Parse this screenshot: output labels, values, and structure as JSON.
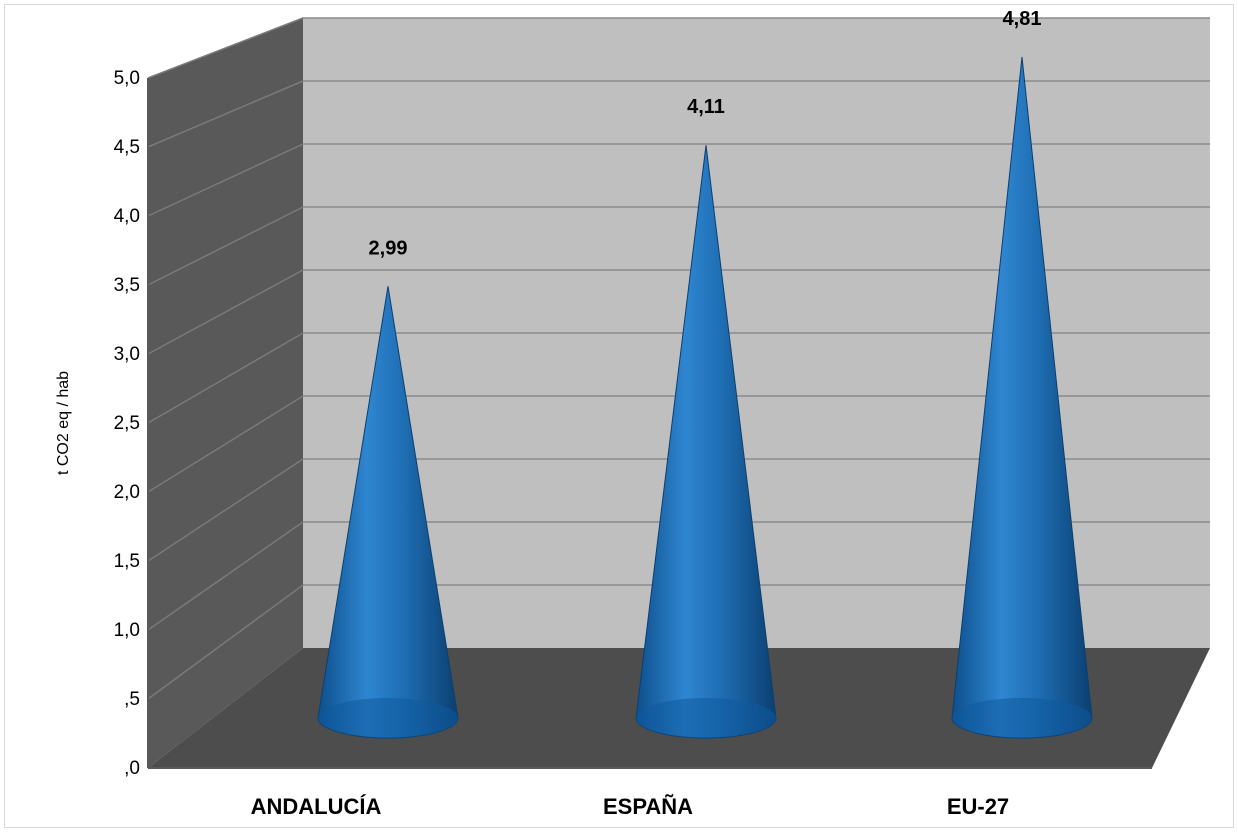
{
  "chart_data": {
    "type": "bar",
    "style": "3d-cone",
    "categories": [
      "ANDALUCÍA",
      "ESPAÑA",
      "EU-27"
    ],
    "values": [
      2.99,
      4.11,
      4.81
    ],
    "data_labels": [
      "2,99",
      "4,11",
      "4,81"
    ],
    "ylabel": "t CO2 eq / hab",
    "ylim": [
      0,
      5
    ],
    "y_ticks": [
      ",0",
      ",5",
      "1,0",
      "1,5",
      "2,0",
      "2,5",
      "3,0",
      "3,5",
      "4,0",
      "4,5",
      "5,0"
    ],
    "y_tick_values": [
      0,
      0.5,
      1,
      1.5,
      2,
      2.5,
      3,
      3.5,
      4,
      4.5,
      5
    ],
    "grid": true,
    "legend": "none",
    "colors": {
      "cone": "#1f6fb5",
      "back_wall": "#bfbfbf",
      "side_wall": "#595959",
      "floor": "#4d4d4d",
      "gridline": "#8c8c8c"
    }
  }
}
